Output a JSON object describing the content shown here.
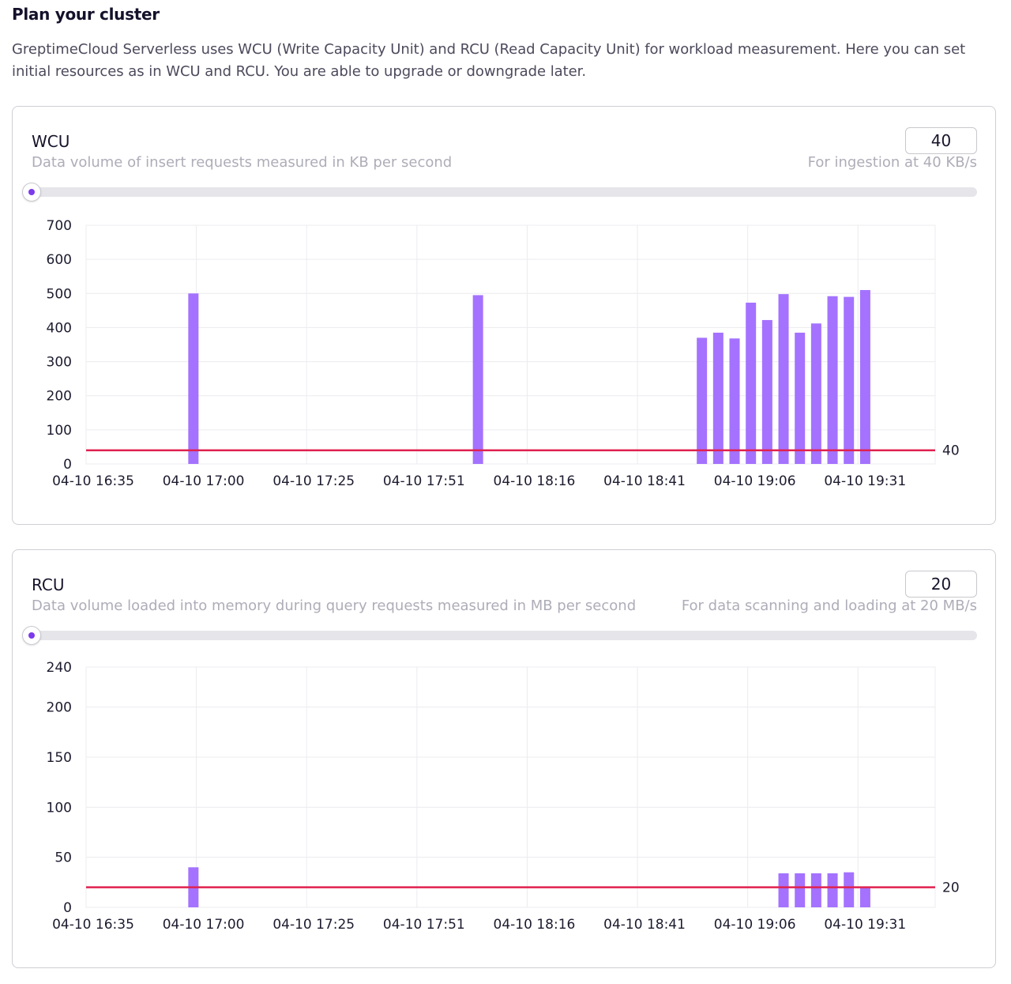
{
  "page": {
    "title": "Plan your cluster",
    "description": "GreptimeCloud Serverless uses WCU (Write Capacity Unit) and RCU (Read Capacity Unit) for workload measurement. Here you can set initial resources as in WCU and RCU. You are able to upgrade or downgrade later."
  },
  "colors": {
    "bar": "#a472ff",
    "threshold": "#e0224f",
    "accent": "#7c3aed",
    "grid": "#ececf0"
  },
  "wcu": {
    "label": "WCU",
    "description": "Data volume of insert requests measured in KB per second",
    "value": "40",
    "hint": "For ingestion at 40 KB/s",
    "slider_fraction": 0.0
  },
  "rcu": {
    "label": "RCU",
    "description": "Data volume loaded into memory during query requests measured in MB per second",
    "value": "20",
    "hint": "For data scanning and loading at 20 MB/s",
    "slider_fraction": 0.0
  },
  "chart_data": [
    {
      "type": "bar",
      "id": "wcu-chart",
      "x_ticks": [
        "04-10 16:35",
        "04-10 17:00",
        "04-10 17:25",
        "04-10 17:51",
        "04-10 18:16",
        "04-10 18:41",
        "04-10 19:06",
        "04-10 19:31"
      ],
      "y_ticks": [
        "0",
        "100",
        "200",
        "300",
        "400",
        "500",
        "600",
        "700"
      ],
      "ylim": [
        0,
        700
      ],
      "x_range": [
        0,
        182
      ],
      "grid": true,
      "threshold": {
        "value": 40,
        "label": "40"
      },
      "bars": [
        {
          "x": 23,
          "y": 500
        },
        {
          "x": 84,
          "y": 495
        },
        {
          "x": 132,
          "y": 370
        },
        {
          "x": 135.5,
          "y": 385
        },
        {
          "x": 139,
          "y": 368
        },
        {
          "x": 142.5,
          "y": 473
        },
        {
          "x": 146,
          "y": 422
        },
        {
          "x": 149.5,
          "y": 498
        },
        {
          "x": 153,
          "y": 385
        },
        {
          "x": 156.5,
          "y": 412
        },
        {
          "x": 160,
          "y": 492
        },
        {
          "x": 163.5,
          "y": 490
        },
        {
          "x": 167,
          "y": 510
        }
      ]
    },
    {
      "type": "bar",
      "id": "rcu-chart",
      "x_ticks": [
        "04-10 16:35",
        "04-10 17:00",
        "04-10 17:25",
        "04-10 17:51",
        "04-10 18:16",
        "04-10 18:41",
        "04-10 19:06",
        "04-10 19:31"
      ],
      "y_ticks": [
        "0",
        "50",
        "100",
        "150",
        "200",
        "240"
      ],
      "ylim": [
        0,
        240
      ],
      "x_range": [
        0,
        182
      ],
      "grid": true,
      "threshold": {
        "value": 20,
        "label": "20"
      },
      "bars": [
        {
          "x": 23,
          "y": 40
        },
        {
          "x": 149.5,
          "y": 34
        },
        {
          "x": 153,
          "y": 34
        },
        {
          "x": 156.5,
          "y": 34
        },
        {
          "x": 160,
          "y": 34
        },
        {
          "x": 163.5,
          "y": 35
        },
        {
          "x": 167,
          "y": 20
        }
      ]
    }
  ]
}
